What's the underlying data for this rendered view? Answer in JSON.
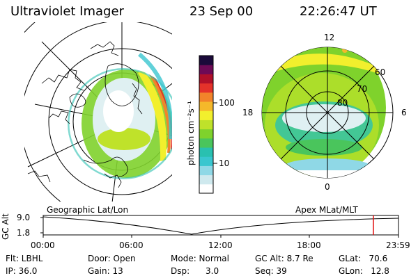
{
  "header": {
    "instrument": "Ultraviolet Imager",
    "date": "23 Sep 00",
    "time": "22:26:47 UT"
  },
  "left_panel": {
    "caption": "Geographic Lat/Lon"
  },
  "right_panel": {
    "caption": "Apex MLat/MLT",
    "mlt_labels": {
      "top": "12",
      "left": "18",
      "right": "6",
      "bottom": "0"
    },
    "lat_labels": [
      "60",
      "70",
      "80"
    ]
  },
  "colorbar": {
    "unit_label": "photon cm⁻²s⁻¹",
    "ticks": [
      "100",
      "10"
    ],
    "scale": "log",
    "colors": [
      "#ffffff",
      "#cfe9ee",
      "#8fd8e6",
      "#39c6cf",
      "#29c0b0",
      "#4ac55c",
      "#7fd22c",
      "#bfe22a",
      "#f2ef2d",
      "#f5b82a",
      "#f2832a",
      "#e4322a",
      "#b0102a",
      "#6e0a56",
      "#1b0a3a"
    ]
  },
  "timeline": {
    "axis_label": "GC Alt",
    "y_ticks": [
      "9.0",
      "1.8"
    ],
    "x_ticks": [
      "00:00",
      "06:00",
      "12:00",
      "18:00",
      "23:59"
    ],
    "current_time_marker": "22:26",
    "marker_color": "#e01010"
  },
  "info": {
    "flt": "Flt: LBHL",
    "ip": "IP: 36.0",
    "door": "Door: Open",
    "gain": "Gain: 13",
    "mode": "Mode: Normal",
    "dsp": "Dsp:      3.0",
    "gc_alt": "GC Alt: 8.7 Re",
    "seq": "Seq: 39",
    "glat": "GLat:   70.6",
    "glon": "GLon:   12.8"
  }
}
